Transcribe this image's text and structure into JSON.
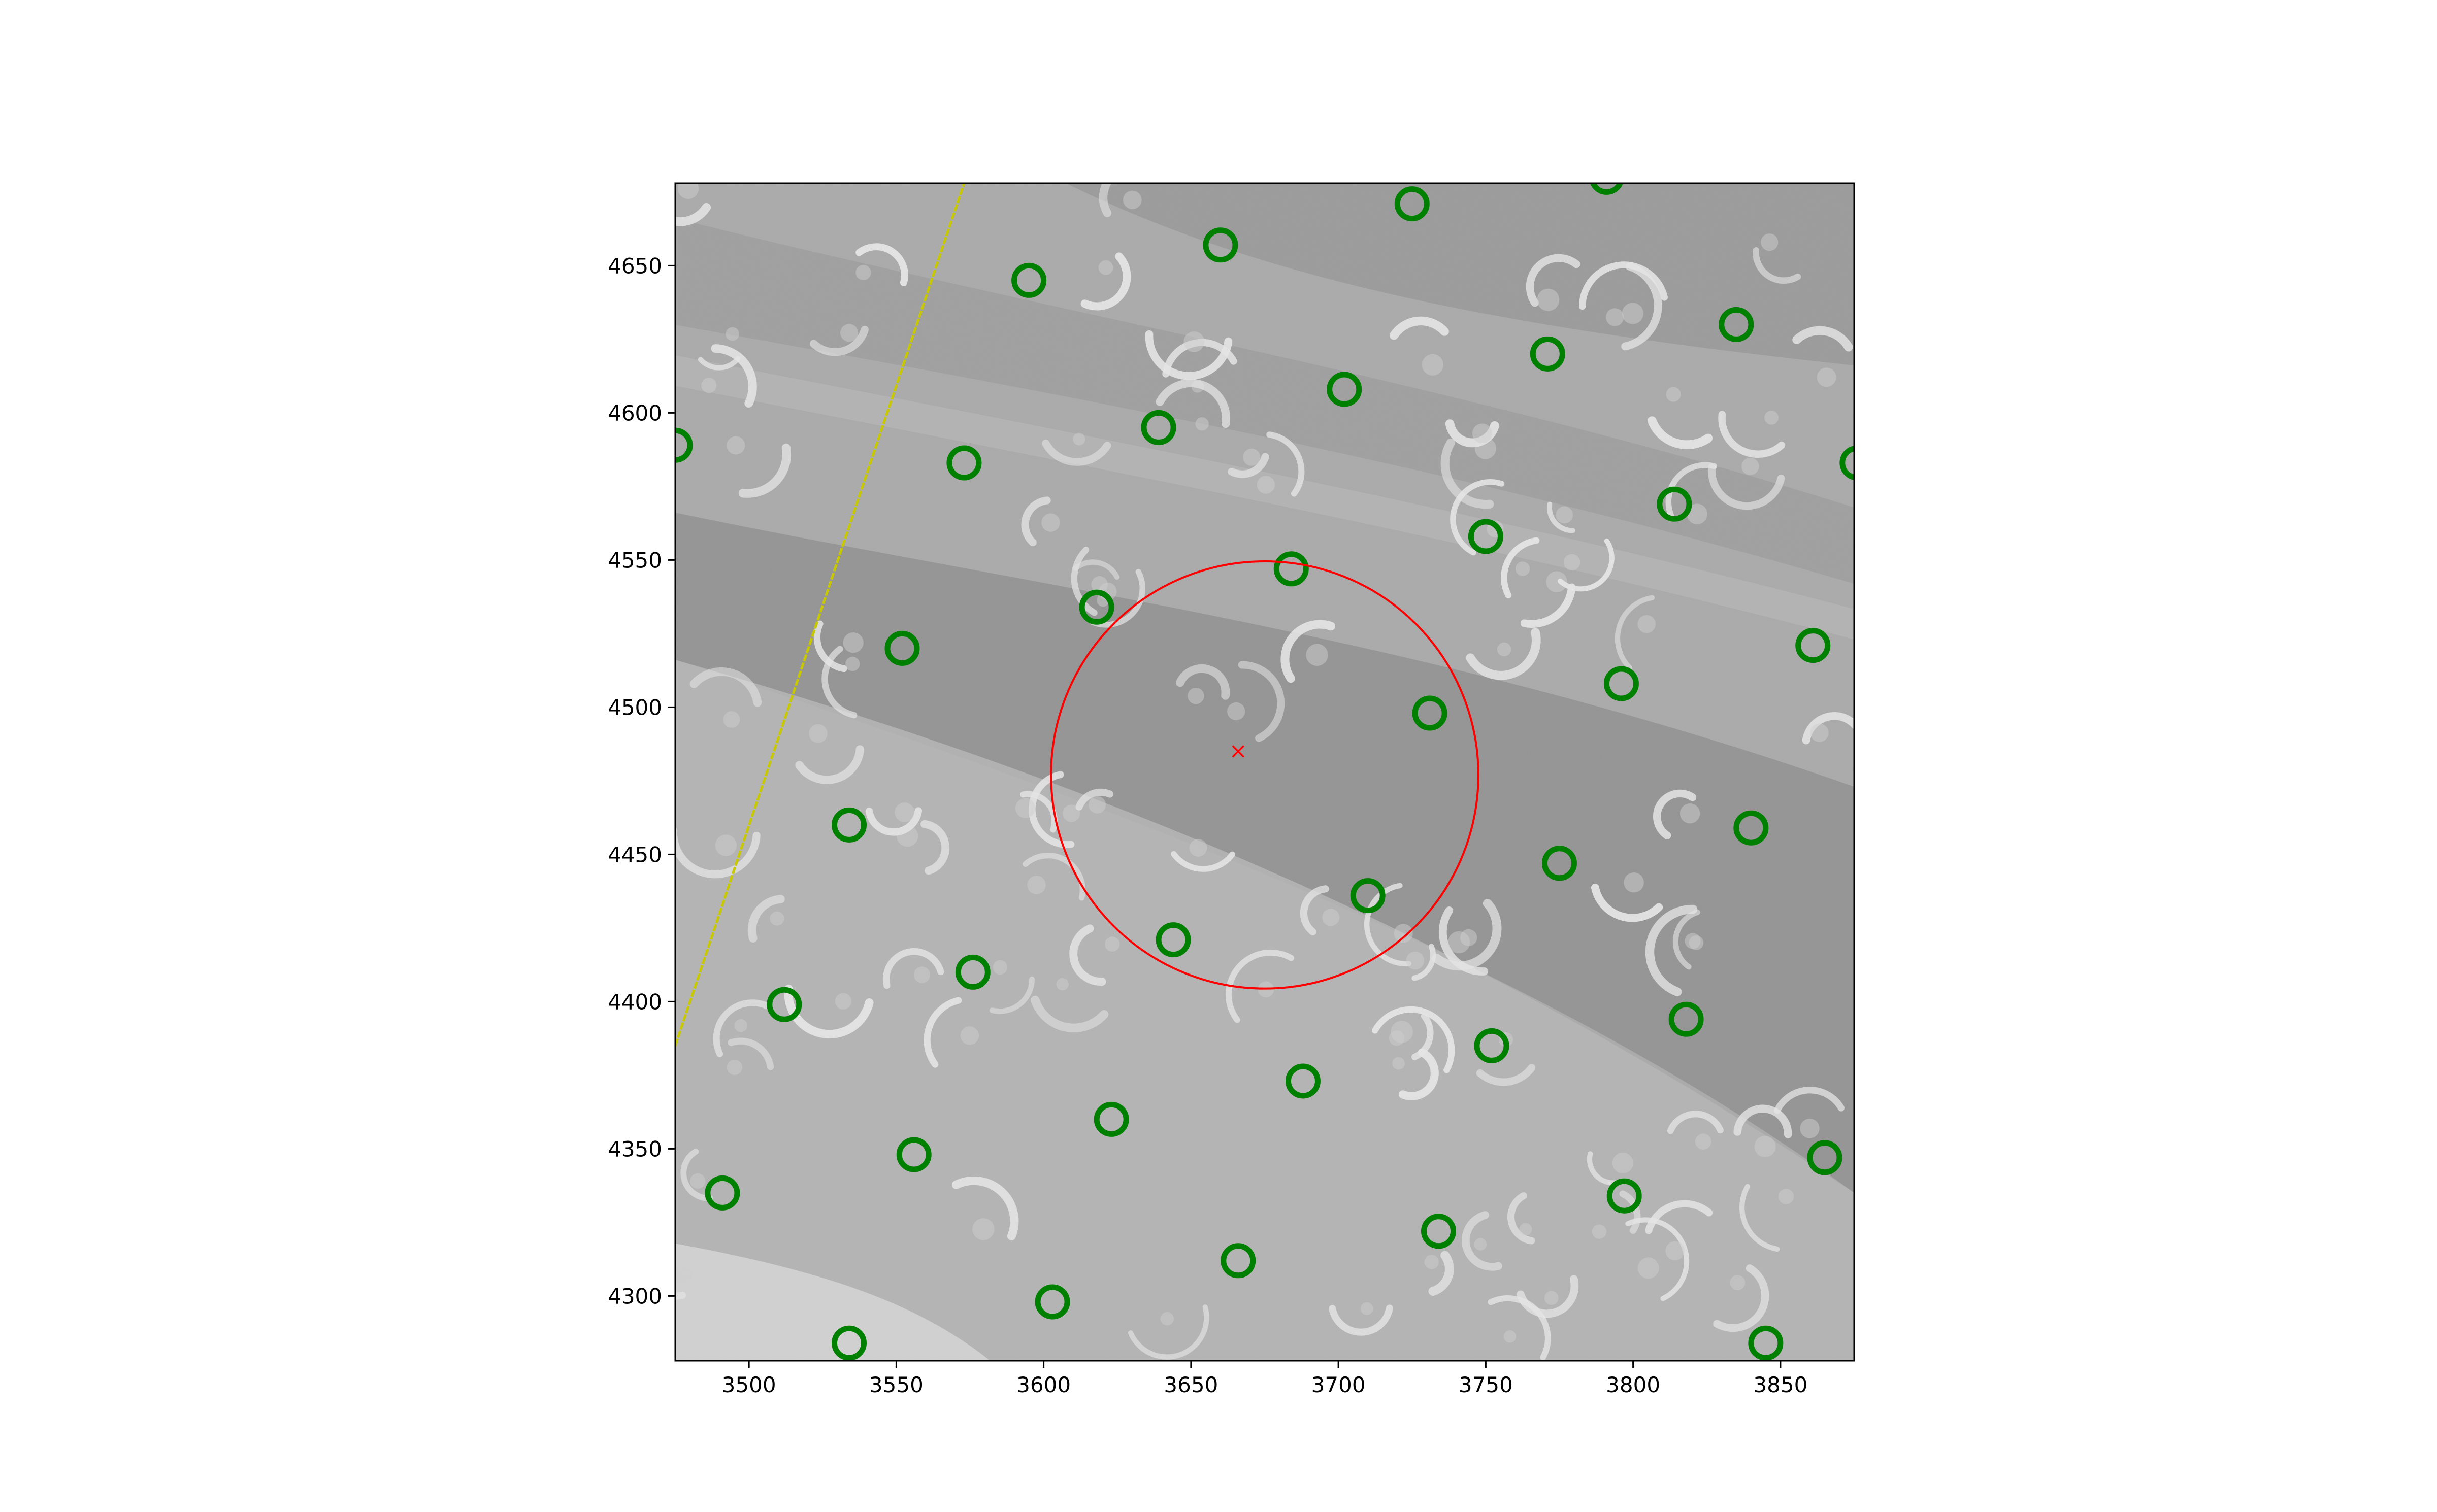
{
  "chart_data": {
    "type": "scatter",
    "title": "",
    "xlabel": "",
    "ylabel": "",
    "xlim": [
      3475,
      3875
    ],
    "ylim": [
      4278,
      4678
    ],
    "xticks": [
      3500,
      3550,
      3600,
      3650,
      3700,
      3750,
      3800,
      3850
    ],
    "yticks": [
      4300,
      4350,
      4400,
      4450,
      4500,
      4550,
      4600,
      4650
    ],
    "grid": false,
    "legend": "none",
    "background": "grayscale micrograph with bright crescent particle features and diagonal darker bands",
    "colors": {
      "particle_markers": "#008000",
      "target_circle": "#ff0000",
      "center_marker": "#ff0000",
      "edge_line": "#c8c800",
      "axes": "#000000"
    },
    "series": [
      {
        "marker": "open-circle",
        "color": "#008000",
        "points": [
          [
            3725,
            4671
          ],
          [
            3791,
            4680
          ],
          [
            3660,
            4657
          ],
          [
            3595,
            4645
          ],
          [
            3835,
            4630
          ],
          [
            3771,
            4620
          ],
          [
            3702,
            4608
          ],
          [
            3639,
            4595
          ],
          [
            3475,
            4589
          ],
          [
            3573,
            4583
          ],
          [
            3876,
            4583
          ],
          [
            3814,
            4569
          ],
          [
            3750,
            4558
          ],
          [
            3684,
            4547
          ],
          [
            3618,
            4534
          ],
          [
            3552,
            4520
          ],
          [
            3861,
            4521
          ],
          [
            3796,
            4508
          ],
          [
            3731,
            4498
          ],
          [
            3534,
            4460
          ],
          [
            3840,
            4459
          ],
          [
            3775,
            4447
          ],
          [
            3710,
            4436
          ],
          [
            3644,
            4421
          ],
          [
            3576,
            4410
          ],
          [
            3512,
            4399
          ],
          [
            3818,
            4394
          ],
          [
            3752,
            4385
          ],
          [
            3688,
            4373
          ],
          [
            3623,
            4360
          ],
          [
            3865,
            4347
          ],
          [
            3556,
            4348
          ],
          [
            3491,
            4335
          ],
          [
            3797,
            4334
          ],
          [
            3734,
            4322
          ],
          [
            3666,
            4312
          ],
          [
            3603,
            4298
          ],
          [
            3534,
            4284
          ],
          [
            3845,
            4284
          ]
        ]
      },
      {
        "marker": "x",
        "color": "#ff0000",
        "points": [
          [
            3666,
            4485
          ]
        ]
      },
      {
        "marker": "large-open-circle",
        "color": "#ff0000",
        "center": [
          3675,
          4477
        ],
        "radius": 72.5
      },
      {
        "marker": "line",
        "color": "#c8c800",
        "points": [
          [
            3475,
            4385
          ],
          [
            3573,
            4678
          ]
        ]
      }
    ]
  }
}
